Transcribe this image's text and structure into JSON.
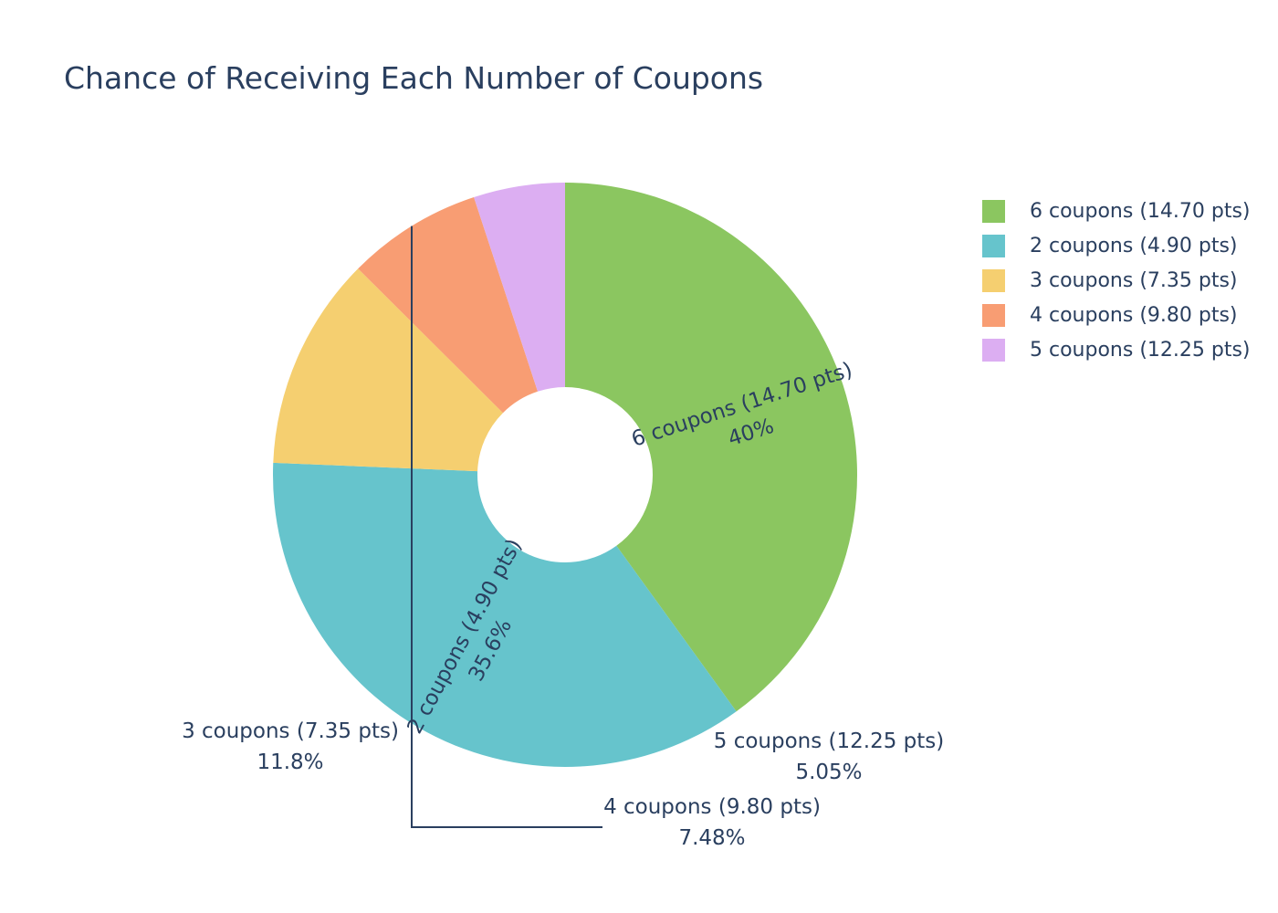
{
  "chart_data": {
    "type": "pie",
    "title": "Chance of Receiving Each Number of Coupons",
    "hole": true,
    "legend_position": "right",
    "slices": [
      {
        "label": "6 coupons (14.70 pts)",
        "value": 40.0,
        "percent_label": "40%",
        "color": "#8BC660"
      },
      {
        "label": "2 coupons (4.90 pts)",
        "value": 35.6,
        "percent_label": "35.6%",
        "color": "#66C4CC"
      },
      {
        "label": "3 coupons (7.35 pts)",
        "value": 11.8,
        "percent_label": "11.8%",
        "color": "#F5CF70"
      },
      {
        "label": "4 coupons (9.80 pts)",
        "value": 7.48,
        "percent_label": "7.48%",
        "color": "#F89D73"
      },
      {
        "label": "5 coupons (12.25 pts)",
        "value": 5.05,
        "percent_label": "5.05%",
        "color": "#DCAEF2"
      }
    ]
  }
}
